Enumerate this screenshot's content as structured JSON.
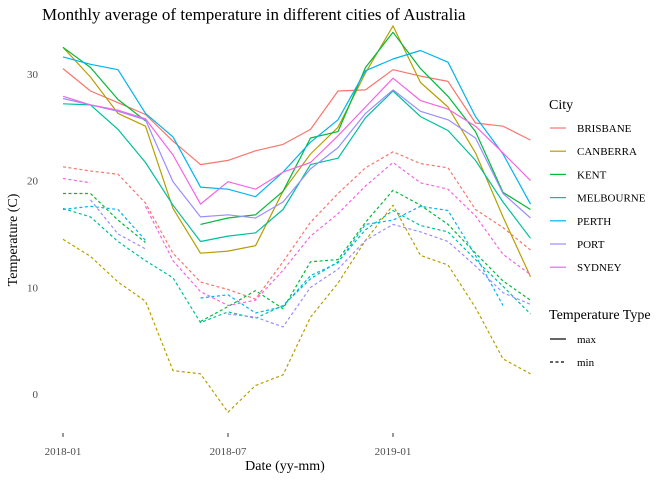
{
  "chart_data": {
    "type": "line",
    "title": "Monthly average of temperature in different cities of Australia",
    "xlabel": "Date (yy-mm)",
    "ylabel": "Temperature (C)",
    "x": [
      "2018-01",
      "2018-02",
      "2018-03",
      "2018-04",
      "2018-05",
      "2018-06",
      "2018-07",
      "2018-08",
      "2018-09",
      "2018-10",
      "2018-11",
      "2018-12",
      "2019-01",
      "2019-02",
      "2019-03",
      "2019-04",
      "2019-05",
      "2019-06"
    ],
    "x_ticks": [
      "2018-01",
      "2018-07",
      "2019-01"
    ],
    "y_ticks": [
      0,
      10,
      20,
      30
    ],
    "ylim": [
      -3.3,
      36.3
    ],
    "grid": false,
    "legend_position": "right",
    "colors": {
      "BRISBANE": "#F8766D",
      "CANBERRA": "#B79F00",
      "KENT": "#00BA38",
      "MELBOURNE": "#00BF9C",
      "PERTH": "#00B4EF",
      "PORT": "#9B8DFF",
      "SYDNEY": "#F564E3"
    },
    "series": [
      {
        "name": "BRISBANE",
        "type": "max",
        "values": [
          30.5,
          28.4,
          27.3,
          26.2,
          23.7,
          21.5,
          21.9,
          22.8,
          23.4,
          24.8,
          28.4,
          28.5,
          30.4,
          29.8,
          29.3,
          25.4,
          25.1,
          23.8
        ]
      },
      {
        "name": "BRISBANE",
        "type": "min",
        "values": [
          21.3,
          20.9,
          20.6,
          17.9,
          13.2,
          10.5,
          9.8,
          8.9,
          12.4,
          16.1,
          18.8,
          21.2,
          22.7,
          21.6,
          21.2,
          17.3,
          15.6,
          13.5
        ]
      },
      {
        "name": "CANBERRA",
        "type": "max",
        "values": [
          32.5,
          29.7,
          26.3,
          25.1,
          17.4,
          13.2,
          13.4,
          13.9,
          19.0,
          22.5,
          25.0,
          30.1,
          34.5,
          29.2,
          26.9,
          22.6,
          16.6,
          11.0
        ]
      },
      {
        "name": "CANBERRA",
        "type": "min",
        "values": [
          14.5,
          12.9,
          10.5,
          8.7,
          2.2,
          1.9,
          -1.7,
          0.8,
          1.8,
          7.2,
          10.4,
          14.4,
          17.7,
          13.0,
          12.1,
          8.1,
          3.3,
          1.9
        ]
      },
      {
        "name": "KENT",
        "type": "max",
        "values": [
          32.5,
          30.6,
          27.6,
          25.6,
          null,
          15.9,
          16.5,
          16.8,
          19.0,
          24.0,
          24.6,
          30.6,
          33.9,
          30.5,
          27.9,
          24.6,
          18.9,
          17.3
        ]
      },
      {
        "name": "KENT",
        "type": "min",
        "values": [
          18.8,
          18.8,
          16.3,
          14.2,
          null,
          6.8,
          8.2,
          9.7,
          8.0,
          12.4,
          12.6,
          16.1,
          19.1,
          17.7,
          15.9,
          13.2,
          10.6,
          8.8
        ]
      },
      {
        "name": "MELBOURNE",
        "type": "max",
        "values": [
          27.2,
          27.1,
          24.8,
          21.7,
          17.7,
          14.3,
          14.8,
          15.1,
          17.3,
          21.5,
          22.1,
          25.9,
          28.4,
          26.0,
          24.7,
          21.9,
          18.0,
          14.6
        ]
      },
      {
        "name": "MELBOURNE",
        "type": "min",
        "values": [
          17.4,
          16.6,
          14.3,
          12.5,
          10.9,
          6.7,
          7.7,
          7.1,
          8.3,
          10.8,
          12.4,
          15.4,
          17.2,
          15.8,
          15.2,
          12.6,
          10.1,
          7.5
        ]
      },
      {
        "name": "PERTH",
        "type": "max",
        "values": [
          31.6,
          30.9,
          30.4,
          26.3,
          24.1,
          19.4,
          19.2,
          18.5,
          20.8,
          23.6,
          25.7,
          30.3,
          31.4,
          32.2,
          31.1,
          26.0,
          22.5,
          17.8
        ]
      },
      {
        "name": "PERTH",
        "type": "min",
        "values": [
          17.3,
          17.6,
          17.3,
          14.4,
          null,
          9.0,
          9.3,
          7.6,
          8.2,
          11.1,
          12.3,
          15.9,
          16.3,
          17.6,
          17.2,
          13.0,
          8.3,
          null
        ]
      },
      {
        "name": "PORT",
        "type": "max",
        "values": [
          27.7,
          27.1,
          26.5,
          25.7,
          19.9,
          16.6,
          16.8,
          16.5,
          18.0,
          21.1,
          23.1,
          26.3,
          28.5,
          26.5,
          25.7,
          24.0,
          18.8,
          16.5
        ]
      },
      {
        "name": "PORT",
        "type": "min",
        "values": [
          null,
          18.2,
          15.0,
          13.6,
          null,
          null,
          7.5,
          7.2,
          6.3,
          10.0,
          11.7,
          14.4,
          15.9,
          15.2,
          14.3,
          12.0,
          9.5,
          8.4
        ]
      },
      {
        "name": "SYDNEY",
        "type": "max",
        "values": [
          27.9,
          27.1,
          26.6,
          25.8,
          22.4,
          17.8,
          19.9,
          19.2,
          20.8,
          21.7,
          24.2,
          26.9,
          29.6,
          27.5,
          26.7,
          25.1,
          22.6,
          20.0
        ]
      },
      {
        "name": "SYDNEY",
        "type": "min",
        "values": [
          20.2,
          19.8,
          null,
          17.6,
          12.5,
          9.6,
          8.3,
          8.8,
          11.6,
          14.8,
          16.9,
          19.5,
          21.7,
          19.8,
          19.2,
          16.7,
          13.1,
          11.2
        ]
      }
    ],
    "legends": {
      "city_title": "City",
      "cities": [
        "BRISBANE",
        "CANBERRA",
        "KENT",
        "MELBOURNE",
        "PERTH",
        "PORT",
        "SYDNEY"
      ],
      "type_title": "Temperature Type",
      "types": [
        "max",
        "min"
      ]
    }
  }
}
